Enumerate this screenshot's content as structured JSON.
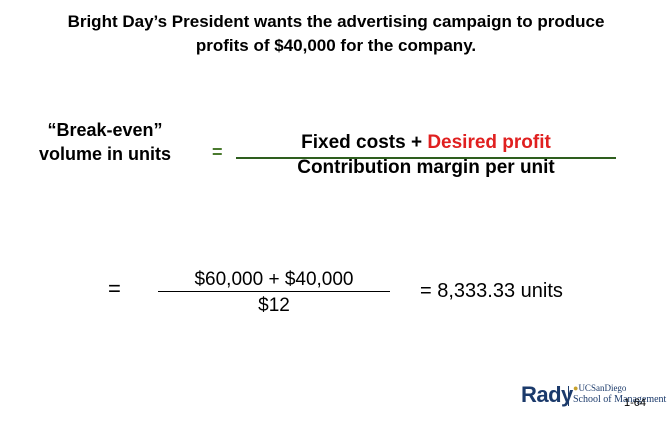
{
  "headline": {
    "line1": "Bright Day’s President wants the advertising campaign to produce",
    "line2": "profits of $40,000 for the company."
  },
  "formula": {
    "lhs_line1": "“Break-even”",
    "lhs_line2": "volume in units",
    "equals": "=",
    "numerator_part1": "Fixed costs + ",
    "numerator_part2": "Desired profit",
    "denominator": "Contribution margin per unit"
  },
  "calculation": {
    "equals": "=",
    "numerator": "$60,000 + $40,000",
    "denominator": "$12",
    "result": "= 8,333.33 units"
  },
  "logo": {
    "brand": "Rady",
    "university": "UCSanDiego",
    "school": "School of Management"
  },
  "slide_number": "1-64",
  "colors": {
    "desired_profit": "#e02020",
    "formula_rule": "#2e5e1e",
    "green_equals": "#4a7a2e",
    "logo_blue": "#1b3a6b"
  }
}
